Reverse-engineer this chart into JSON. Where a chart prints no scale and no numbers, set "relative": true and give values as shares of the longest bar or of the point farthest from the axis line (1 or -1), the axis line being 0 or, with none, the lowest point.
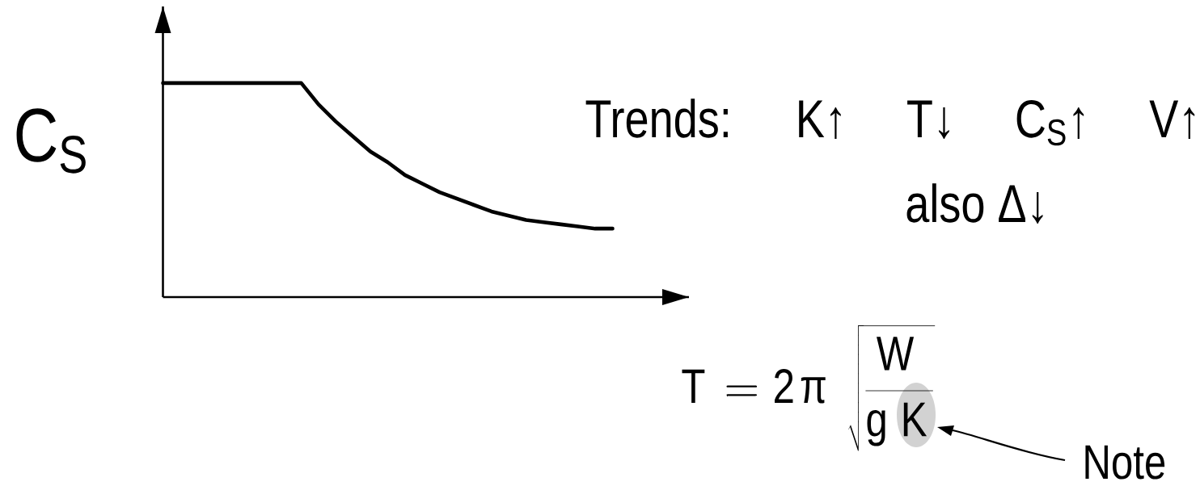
{
  "chart_data": {
    "type": "line",
    "ylabel": "C$_{S}$",
    "categories": [
      null,
      null,
      null,
      null,
      null,
      null,
      null,
      null,
      null,
      null,
      null,
      null,
      null,
      null,
      null,
      null,
      null,
      null,
      null,
      null,
      null,
      null,
      null,
      null,
      null,
      null,
      null
    ],
    "values": [
      1,
      1,
      1,
      1,
      1,
      1,
      1,
      1,
      1,
      0.9,
      0.82,
      0.75,
      0.68,
      0.63,
      0.57,
      0.53,
      0.49,
      0.46,
      0.43,
      0.4,
      0.38,
      0.36,
      0.35,
      0.34,
      0.33,
      0.32,
      0.32
    ],
    "color": "#000000",
    "relative": true,
    "annotations": [
      "Trends: K↑ T↓ C$_{S}$↑ V↑",
      "also Δ↓",
      "\\mathrm{T} = \\mathrm{2π}\\;\\sqrt{\\frac{\\mathrm{W}}{\\mathrm{g\\,K}}}",
      "Note"
    ]
  }
}
